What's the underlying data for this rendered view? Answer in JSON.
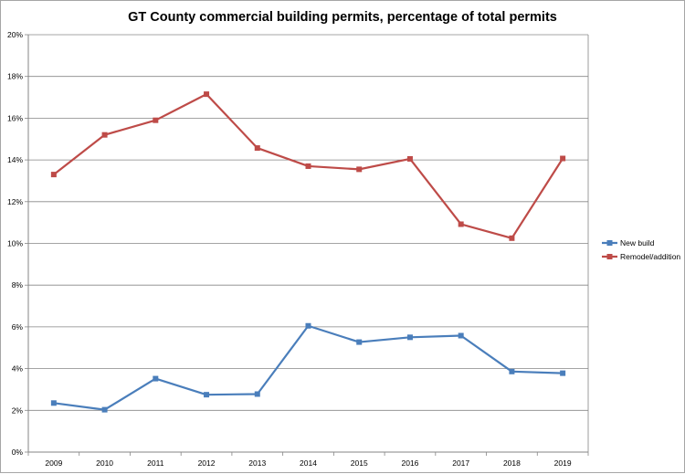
{
  "chart_data": {
    "type": "line",
    "title": "GT County commercial building permits, percentage of total permits",
    "xlabel": "",
    "ylabel": "",
    "categories": [
      "2009",
      "2010",
      "2011",
      "2012",
      "2013",
      "2014",
      "2015",
      "2016",
      "2017",
      "2018",
      "2019"
    ],
    "ylim": [
      0,
      20
    ],
    "y_ticks": [
      0,
      2,
      4,
      6,
      8,
      10,
      12,
      14,
      16,
      18,
      20
    ],
    "y_tick_format": "%",
    "grid": "horizontal",
    "legend_position": "right",
    "series": [
      {
        "name": "New build",
        "color": "#4a7ebb",
        "marker": "square",
        "values": [
          2.35,
          2.03,
          3.52,
          2.75,
          2.78,
          6.05,
          5.27,
          5.5,
          5.58,
          3.86,
          3.78
        ]
      },
      {
        "name": "Remodel/addition",
        "color": "#be4b48",
        "marker": "square",
        "values": [
          13.3,
          15.2,
          15.9,
          17.15,
          14.57,
          13.7,
          13.55,
          14.05,
          10.92,
          10.25,
          14.07
        ]
      }
    ]
  }
}
